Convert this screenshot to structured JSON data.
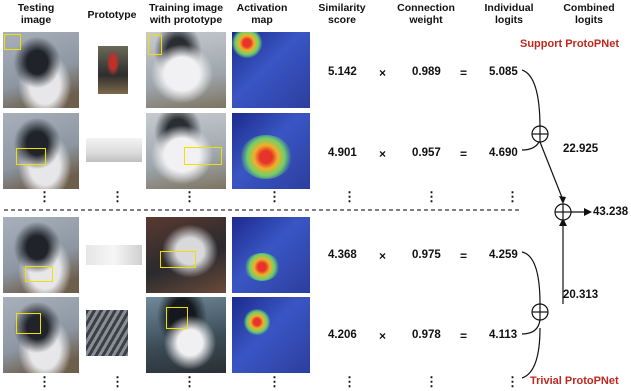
{
  "headers": {
    "testing": "Testing\nimage",
    "prototype": "Prototype",
    "training": "Training image\nwith prototype",
    "activation": "Activation\nmap",
    "similarity": "Similarity\nscore",
    "connection": "Connection\nweight",
    "individual": "Individual\nlogits",
    "combined": "Combined\nlogits"
  },
  "support_label": "Support ProtoPNet",
  "trivial_label": "Trivial ProtoPNet",
  "rows": [
    {
      "similarity": "5.142",
      "weight": "0.989",
      "logit": "5.085"
    },
    {
      "similarity": "4.901",
      "weight": "0.957",
      "logit": "4.690"
    },
    {
      "similarity": "4.368",
      "weight": "0.975",
      "logit": "4.259"
    },
    {
      "similarity": "4.206",
      "weight": "0.978",
      "logit": "4.113"
    }
  ],
  "operators": {
    "times": "×",
    "equals": "="
  },
  "ellipsis": "⋮",
  "support_sum": "22.925",
  "trivial_sum": "20.313",
  "total": "43.238",
  "colors": {
    "accent": "#c0281e",
    "box": "#f0e000"
  }
}
